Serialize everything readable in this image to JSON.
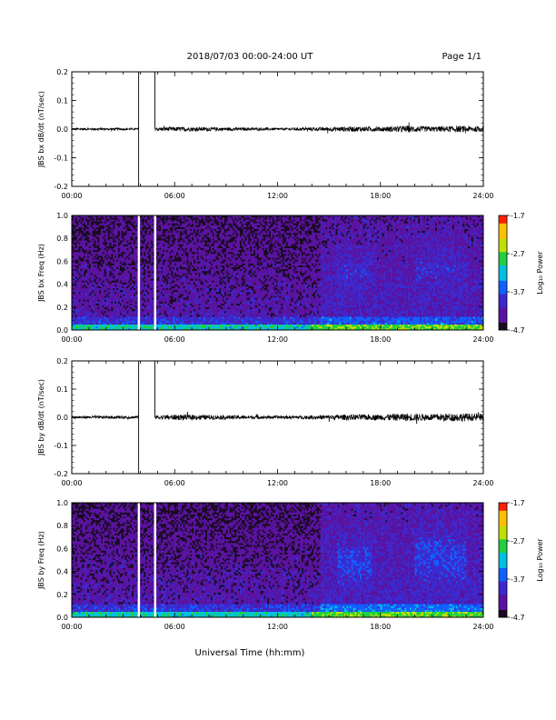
{
  "header": {
    "title": "2018/07/03  00:00-24:00 UT",
    "page": "Page 1/1"
  },
  "xaxis": {
    "label": "Universal Time (hh:mm)",
    "ticks": [
      "00:00",
      "06:00",
      "12:00",
      "18:00",
      "24:00"
    ],
    "range_hours": [
      0,
      24
    ]
  },
  "colorbar": {
    "label": "Log₁₀ Power",
    "ticks": [
      "-1.7",
      "-2.7",
      "-3.7",
      "-4.7"
    ],
    "range": [
      -4.7,
      -1.7
    ],
    "colors": [
      "#1a0a22",
      "#5a12a0",
      "#3a2ad0",
      "#1060ff",
      "#00c0e0",
      "#20d040",
      "#c0e000",
      "#ffc000",
      "#ff2000"
    ]
  },
  "chart_data": [
    {
      "type": "line",
      "ylabel": "JBS bx dB/dt (nT/sec)",
      "ylim": [
        -0.2,
        0.2
      ],
      "yticks": [
        "0.2",
        "0.1",
        "0.0",
        "-0.1",
        "-0.2"
      ],
      "gap_hours": [
        [
          3.9,
          4.85
        ]
      ],
      "noise_envelope": {
        "x": [
          0,
          4,
          6,
          12,
          14,
          16,
          18,
          19.5,
          21,
          22.5,
          24
        ],
        "amp": [
          0.004,
          0.004,
          0.008,
          0.004,
          0.006,
          0.009,
          0.008,
          0.012,
          0.009,
          0.011,
          0.01
        ]
      }
    },
    {
      "type": "heatmap",
      "ylabel": "JBS bx Freq (Hz)",
      "ylim": [
        0.0,
        1.0
      ],
      "yticks": [
        "1.0",
        "0.8",
        "0.6",
        "0.4",
        "0.2",
        "0.0"
      ],
      "zrange": [
        -4.7,
        -1.7
      ],
      "gap_hours": [
        [
          3.9,
          4.85
        ]
      ]
    },
    {
      "type": "line",
      "ylabel": "JBS by dB/dt (nT/sec)",
      "ylim": [
        -0.2,
        0.2
      ],
      "yticks": [
        "0.2",
        "0.1",
        "0.0",
        "-0.1",
        "-0.2"
      ],
      "gap_hours": [
        [
          3.9,
          4.85
        ]
      ],
      "noise_envelope": {
        "x": [
          0,
          4,
          6,
          12,
          14,
          16,
          18,
          19.5,
          21,
          22.5,
          24
        ],
        "amp": [
          0.005,
          0.005,
          0.01,
          0.005,
          0.007,
          0.01,
          0.01,
          0.014,
          0.012,
          0.015,
          0.012
        ]
      }
    },
    {
      "type": "heatmap",
      "ylabel": "JBS by Freq (Hz)",
      "ylim": [
        0.0,
        1.0
      ],
      "yticks": [
        "1.0",
        "0.8",
        "0.6",
        "0.4",
        "0.2",
        "0.0"
      ],
      "zrange": [
        -4.7,
        -1.7
      ],
      "gap_hours": [
        [
          3.9,
          4.85
        ]
      ]
    }
  ]
}
